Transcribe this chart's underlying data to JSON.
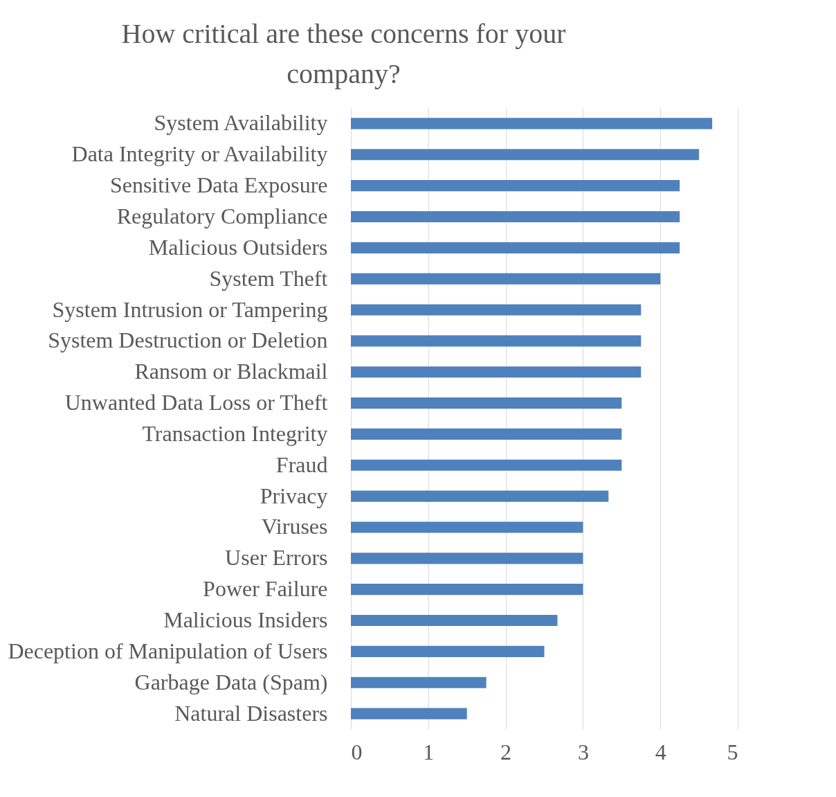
{
  "chart_data": {
    "type": "bar",
    "orientation": "horizontal",
    "title": "How critical are these concerns for your company?",
    "categories": [
      "System Availability",
      "Data Integrity or Availability",
      "Sensitive Data Exposure",
      "Regulatory Compliance",
      "Malicious Outsiders",
      "System Theft",
      "System Intrusion or Tampering",
      "System Destruction or Deletion",
      "Ransom or Blackmail",
      "Unwanted Data Loss or Theft",
      "Transaction Integrity",
      "Fraud",
      "Privacy",
      "Viruses",
      "User Errors",
      "Power Failure",
      "Malicious Insiders",
      "Deception of Manipulation of Users",
      "Garbage Data (Spam)",
      "Natural Disasters"
    ],
    "values": [
      4.67,
      4.5,
      4.25,
      4.25,
      4.25,
      4.0,
      3.75,
      3.75,
      3.75,
      3.5,
      3.5,
      3.5,
      3.33,
      3.0,
      3.0,
      3.0,
      2.67,
      2.5,
      1.75,
      1.5
    ],
    "color": "#4f81bd",
    "xlim": [
      0,
      5
    ],
    "xticks": [
      0,
      1,
      2,
      3,
      4,
      5
    ],
    "grid": "x"
  }
}
